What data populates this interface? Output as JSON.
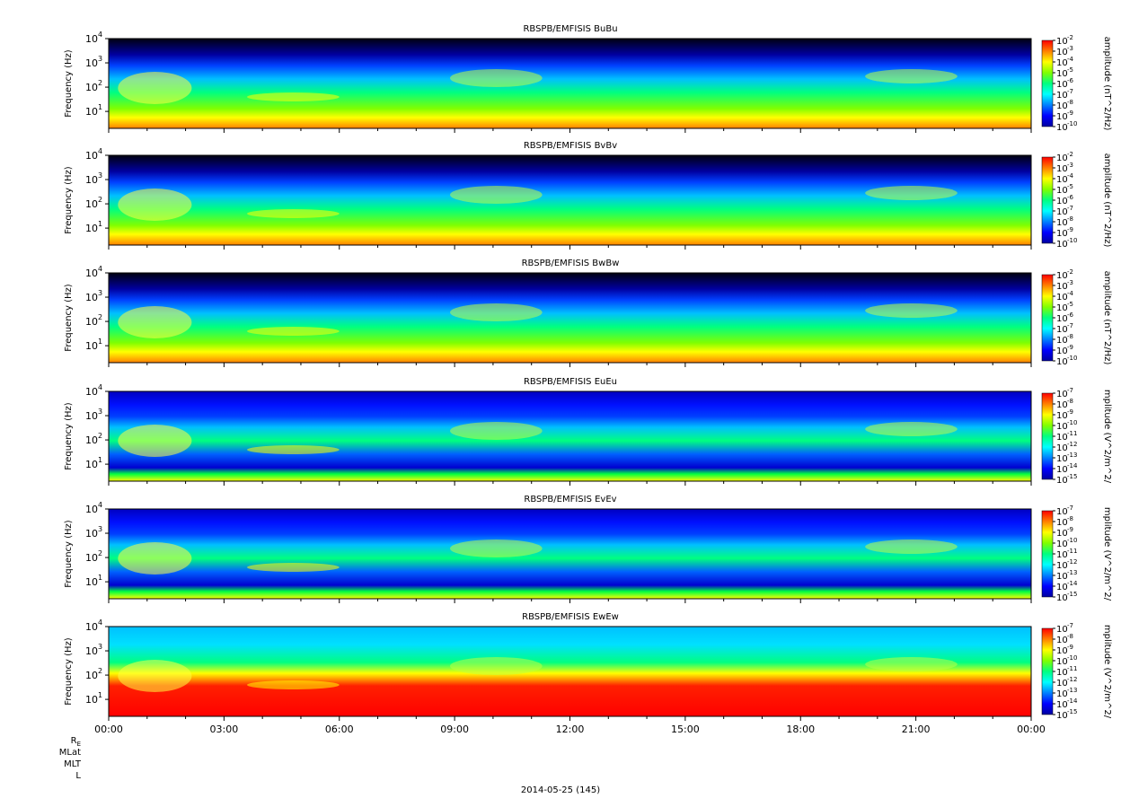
{
  "chart_data": [
    {
      "type": "heatmap",
      "title": "RBSPB/EMFISIS  BuBu",
      "ylabel": "Frequency (Hz)",
      "ylim": [
        2,
        10000
      ],
      "yscale": "log",
      "y_ticks": [
        {
          "base": "10",
          "exp": "4"
        },
        {
          "base": "10",
          "exp": "3"
        },
        {
          "base": "10",
          "exp": "2"
        },
        {
          "base": "10",
          "exp": "1"
        }
      ],
      "colorbar": {
        "label": "amplitude (nT^2/Hz)",
        "ticks": [
          "-2",
          "-3",
          "-4",
          "-5",
          "-6",
          "-7",
          "-8",
          "-9",
          "-10"
        ],
        "range_exp": [
          -10,
          -2
        ]
      }
    },
    {
      "type": "heatmap",
      "title": "RBSPB/EMFISIS  BvBv",
      "ylabel": "Frequency (Hz)",
      "ylim": [
        2,
        10000
      ],
      "yscale": "log",
      "y_ticks": [
        {
          "base": "10",
          "exp": "4"
        },
        {
          "base": "10",
          "exp": "3"
        },
        {
          "base": "10",
          "exp": "2"
        },
        {
          "base": "10",
          "exp": "1"
        }
      ],
      "colorbar": {
        "label": "amplitude (nT^2/Hz)",
        "ticks": [
          "-2",
          "-3",
          "-4",
          "-5",
          "-6",
          "-7",
          "-8",
          "-9",
          "-10"
        ],
        "range_exp": [
          -10,
          -2
        ]
      }
    },
    {
      "type": "heatmap",
      "title": "RBSPB/EMFISIS  BwBw",
      "ylabel": "Frequency (Hz)",
      "ylim": [
        2,
        10000
      ],
      "yscale": "log",
      "y_ticks": [
        {
          "base": "10",
          "exp": "4"
        },
        {
          "base": "10",
          "exp": "3"
        },
        {
          "base": "10",
          "exp": "2"
        },
        {
          "base": "10",
          "exp": "1"
        }
      ],
      "colorbar": {
        "label": "amplitude (nT^2/Hz)",
        "ticks": [
          "-2",
          "-3",
          "-4",
          "-5",
          "-6",
          "-7",
          "-8",
          "-9",
          "-10"
        ],
        "range_exp": [
          -10,
          -2
        ]
      }
    },
    {
      "type": "heatmap",
      "title": "RBSPB/EMFISIS  EuEu",
      "ylabel": "Frequency (Hz)",
      "ylim": [
        2,
        10000
      ],
      "yscale": "log",
      "y_ticks": [
        {
          "base": "10",
          "exp": "4"
        },
        {
          "base": "10",
          "exp": "3"
        },
        {
          "base": "10",
          "exp": "2"
        },
        {
          "base": "10",
          "exp": "1"
        }
      ],
      "colorbar": {
        "label": "mplitude (V^2/m^2/",
        "ticks": [
          "-7",
          "-8",
          "-9",
          "-10",
          "-11",
          "-12",
          "-13",
          "-14",
          "-15"
        ],
        "range_exp": [
          -15,
          -7
        ]
      }
    },
    {
      "type": "heatmap",
      "title": "RBSPB/EMFISIS  EvEv",
      "ylabel": "Frequency (Hz)",
      "ylim": [
        2,
        10000
      ],
      "yscale": "log",
      "y_ticks": [
        {
          "base": "10",
          "exp": "4"
        },
        {
          "base": "10",
          "exp": "3"
        },
        {
          "base": "10",
          "exp": "2"
        },
        {
          "base": "10",
          "exp": "1"
        }
      ],
      "colorbar": {
        "label": "mplitude (V^2/m^2/",
        "ticks": [
          "-7",
          "-8",
          "-9",
          "-10",
          "-11",
          "-12",
          "-13",
          "-14",
          "-15"
        ],
        "range_exp": [
          -15,
          -7
        ]
      }
    },
    {
      "type": "heatmap",
      "title": "RBSPB/EMFISIS  EwEw",
      "ylabel": "Frequency (Hz)",
      "ylim": [
        2,
        10000
      ],
      "yscale": "log",
      "y_ticks": [
        {
          "base": "10",
          "exp": "4"
        },
        {
          "base": "10",
          "exp": "3"
        },
        {
          "base": "10",
          "exp": "2"
        },
        {
          "base": "10",
          "exp": "1"
        }
      ],
      "colorbar": {
        "label": "mplitude (V^2/m^2/",
        "ticks": [
          "-7",
          "-8",
          "-9",
          "-10",
          "-11",
          "-12",
          "-13",
          "-14",
          "-15"
        ],
        "range_exp": [
          -15,
          -7
        ]
      }
    }
  ],
  "x_axis": {
    "tick_labels": [
      "00:00",
      "03:00",
      "06:00",
      "09:00",
      "12:00",
      "15:00",
      "18:00",
      "21:00",
      "00:00"
    ],
    "range_hours": [
      0,
      24
    ]
  },
  "ephemeris_labels": [
    "R",
    "MLat",
    "MLT",
    "L"
  ],
  "ephemeris_subscript": "E",
  "date_label": "2014-05-25 (145)",
  "colors": {
    "colormap": [
      "#0000a0",
      "#0000ff",
      "#0080ff",
      "#00ffff",
      "#00ff80",
      "#80ff00",
      "#ffff00",
      "#ff8000",
      "#ff0000"
    ],
    "background_no_data": "#000000"
  }
}
